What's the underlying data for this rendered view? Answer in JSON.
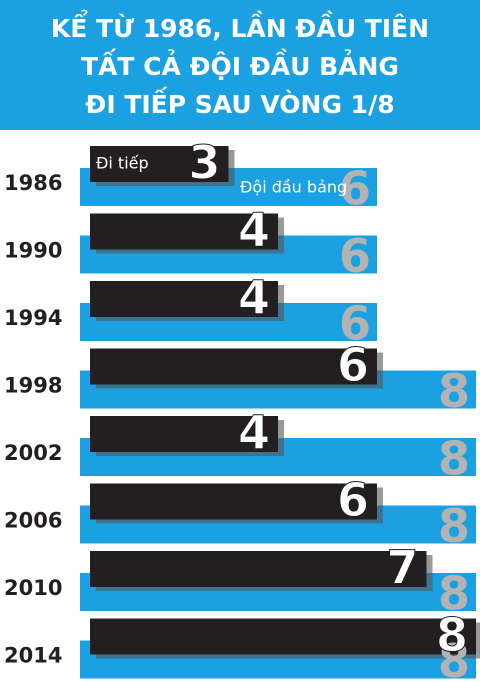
{
  "chart_data": {
    "type": "bar",
    "title": [
      "KỂ TỪ 1986, LẦN ĐẦU TIÊN",
      "TẤT CẢ ĐỘI ĐẦU BẢNG",
      "ĐI TIẾP SAU VÒNG 1/8"
    ],
    "categories": [
      "1986",
      "1990",
      "1994",
      "1998",
      "2002",
      "2006",
      "2010",
      "2014"
    ],
    "series": [
      {
        "name": "Đi tiếp",
        "color": "#231f20",
        "values": [
          3,
          4,
          4,
          6,
          4,
          6,
          7,
          8
        ]
      },
      {
        "name": "Đội đầu bảng",
        "color": "#1ba1e2",
        "values": [
          6,
          6,
          6,
          8,
          8,
          8,
          8,
          8
        ]
      }
    ],
    "xlim": [
      0,
      8
    ]
  }
}
